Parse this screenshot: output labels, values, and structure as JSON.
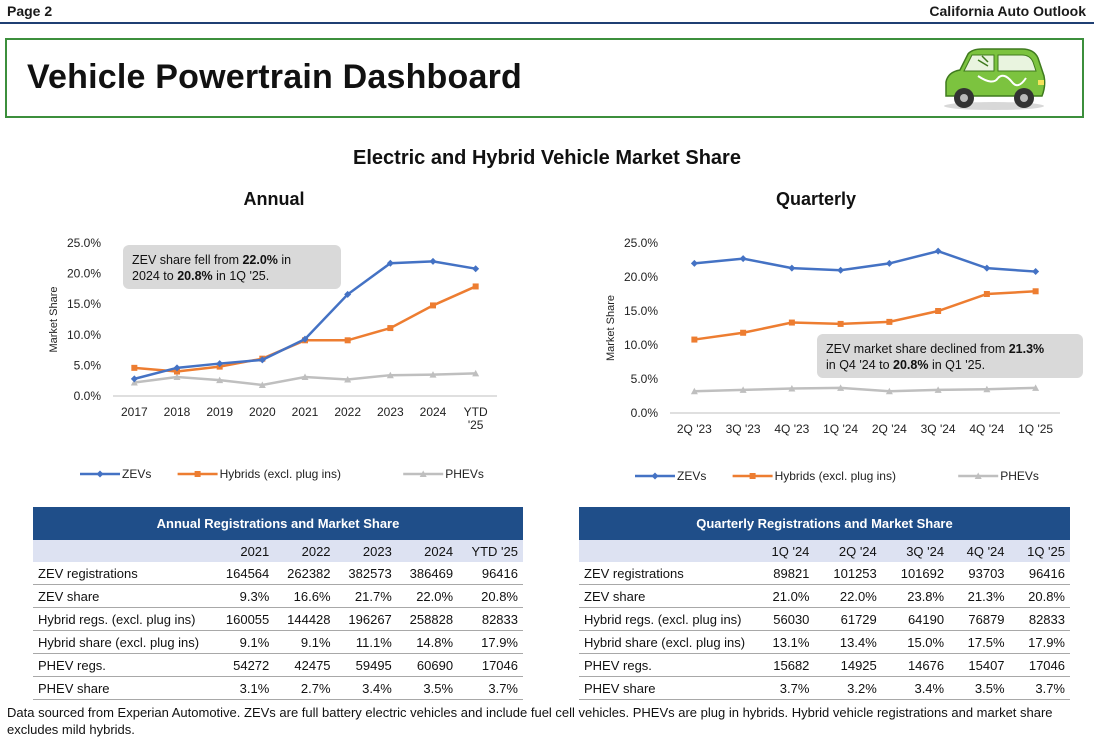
{
  "header": {
    "page_label": "Page 2",
    "publication": "California Auto Outlook",
    "title": "Vehicle Powertrain Dashboard"
  },
  "main_title": "Electric and Hybrid Vehicle Market Share",
  "colors": {
    "zev": "#4472c4",
    "hybrid": "#ed7d31",
    "phev": "#bfbfbf",
    "table_header": "#1f4e89",
    "frame": "#3c8f3c"
  },
  "chart_data": [
    {
      "type": "line",
      "title": "Annual",
      "ylabel": "Market Share",
      "xlabel": "",
      "categories": [
        "2017",
        "2018",
        "2019",
        "2020",
        "2021",
        "2022",
        "2023",
        "2024",
        "YTD '25"
      ],
      "ylim": [
        0,
        25
      ],
      "yticks": [
        "0.0%",
        "5.0%",
        "10.0%",
        "15.0%",
        "20.0%",
        "25.0%"
      ],
      "series": [
        {
          "name": "ZEVs",
          "values": [
            2.8,
            4.6,
            5.3,
            5.9,
            9.3,
            16.6,
            21.7,
            22.0,
            20.8
          ]
        },
        {
          "name": "Hybrids (excl. plug ins)",
          "values": [
            4.6,
            4.0,
            4.8,
            6.1,
            9.1,
            9.1,
            11.1,
            14.8,
            17.9
          ]
        },
        {
          "name": "PHEVs",
          "values": [
            2.2,
            3.1,
            2.6,
            1.8,
            3.1,
            2.7,
            3.4,
            3.5,
            3.7
          ]
        }
      ],
      "annotation": {
        "pre": "ZEV share fell from ",
        "a": "22.0%",
        "mid": " in 2024 to ",
        "b": "20.8%",
        "post": " in 1Q '25."
      },
      "legend": "bottom"
    },
    {
      "type": "line",
      "title": "Quarterly",
      "ylabel": "Market Share",
      "xlabel": "",
      "categories": [
        "2Q '23",
        "3Q '23",
        "4Q '23",
        "1Q '24",
        "2Q '24",
        "3Q '24",
        "4Q '24",
        "1Q '25"
      ],
      "ylim": [
        0,
        25
      ],
      "yticks": [
        "0.0%",
        "5.0%",
        "10.0%",
        "15.0%",
        "20.0%",
        "25.0%"
      ],
      "series": [
        {
          "name": "ZEVs",
          "values": [
            22.0,
            22.7,
            21.3,
            21.0,
            22.0,
            23.8,
            21.3,
            20.8
          ]
        },
        {
          "name": "Hybrids (excl. plug ins)",
          "values": [
            10.8,
            11.8,
            13.3,
            13.1,
            13.4,
            15.0,
            17.5,
            17.9
          ]
        },
        {
          "name": "PHEVs",
          "values": [
            3.2,
            3.4,
            3.6,
            3.7,
            3.2,
            3.4,
            3.5,
            3.7
          ]
        }
      ],
      "annotation": {
        "pre": "ZEV market share declined from ",
        "a": "21.3%",
        "mid": " in Q4 '24 to ",
        "b": "20.8%",
        "post": " in Q1 '25."
      },
      "legend": "bottom"
    }
  ],
  "tables": {
    "annual": {
      "title": "Annual Registrations and Market Share",
      "columns": [
        "2021",
        "2022",
        "2023",
        "2024",
        "YTD '25"
      ],
      "rows": [
        {
          "label": "ZEV registrations",
          "values": [
            "164564",
            "262382",
            "382573",
            "386469",
            "96416"
          ]
        },
        {
          "label": "ZEV share",
          "values": [
            "9.3%",
            "16.6%",
            "21.7%",
            "22.0%",
            "20.8%"
          ]
        },
        {
          "label": "Hybrid regs. (excl. plug ins)",
          "values": [
            "160055",
            "144428",
            "196267",
            "258828",
            "82833"
          ]
        },
        {
          "label": "Hybrid share (excl. plug ins)",
          "values": [
            "9.1%",
            "9.1%",
            "11.1%",
            "14.8%",
            "17.9%"
          ]
        },
        {
          "label": "PHEV regs.",
          "values": [
            "54272",
            "42475",
            "59495",
            "60690",
            "17046"
          ]
        },
        {
          "label": "PHEV share",
          "values": [
            "3.1%",
            "2.7%",
            "3.4%",
            "3.5%",
            "3.7%"
          ]
        }
      ]
    },
    "quarterly": {
      "title": "Quarterly Registrations and Market Share",
      "columns": [
        "1Q '24",
        "2Q '24",
        "3Q '24",
        "4Q '24",
        "1Q '25"
      ],
      "rows": [
        {
          "label": "ZEV registrations",
          "values": [
            "89821",
            "101253",
            "101692",
            "93703",
            "96416"
          ]
        },
        {
          "label": "ZEV share",
          "values": [
            "21.0%",
            "22.0%",
            "23.8%",
            "21.3%",
            "20.8%"
          ]
        },
        {
          "label": "Hybrid regs. (excl. plug ins)",
          "values": [
            "56030",
            "61729",
            "64190",
            "76879",
            "82833"
          ]
        },
        {
          "label": "Hybrid share (excl. plug ins)",
          "values": [
            "13.1%",
            "13.4%",
            "15.0%",
            "17.5%",
            "17.9%"
          ]
        },
        {
          "label": "PHEV regs.",
          "values": [
            "15682",
            "14925",
            "14676",
            "15407",
            "17046"
          ]
        },
        {
          "label": "PHEV share",
          "values": [
            "3.7%",
            "3.2%",
            "3.4%",
            "3.5%",
            "3.7%"
          ]
        }
      ]
    }
  },
  "footnote": "Data sourced from Experian Automotive. ZEVs are full battery electric vehicles and include fuel cell vehicles. PHEVs are plug in hybrids. Hybrid vehicle registrations and market share excludes mild hybrids."
}
